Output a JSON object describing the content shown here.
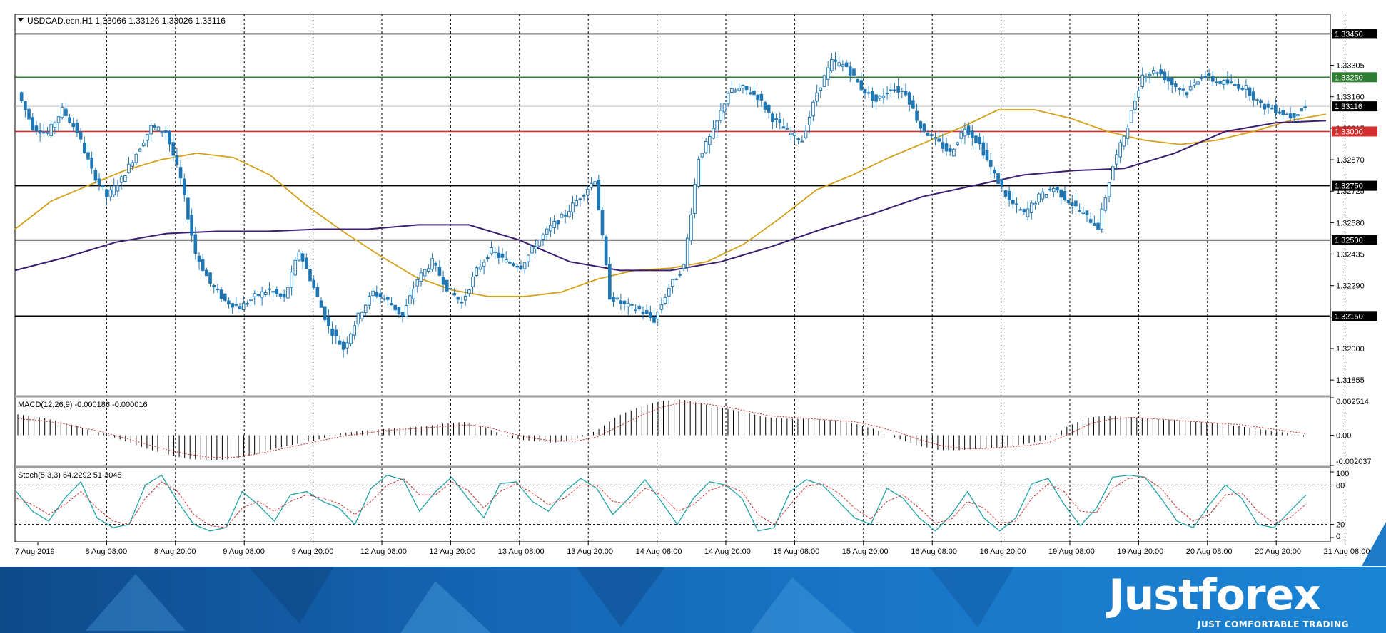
{
  "chart_data": {
    "type": "candlestick",
    "symbol_header": "USDCAD.ecn,H1  1.33066 1.33126 1.33026 1.33116",
    "price_axis": {
      "ylim": [
        1.3178,
        1.3354
      ],
      "tick_labels": [
        "1.33450",
        "1.33305",
        "1.33160",
        "1.33015",
        "1.32870",
        "1.32725",
        "1.32580",
        "1.32435",
        "1.32290",
        "1.32145",
        "1.32000",
        "1.31855"
      ]
    },
    "time_axis": {
      "tick_labels": [
        "7 Aug 2019",
        "8 Aug 08:00",
        "8 Aug 20:00",
        "9 Aug 08:00",
        "9 Aug 20:00",
        "12 Aug 08:00",
        "12 Aug 20:00",
        "13 Aug 08:00",
        "13 Aug 20:00",
        "14 Aug 08:00",
        "14 Aug 20:00",
        "15 Aug 08:00",
        "15 Aug 20:00",
        "16 Aug 08:00",
        "16 Aug 20:00",
        "19 Aug 08:00",
        "19 Aug 20:00",
        "20 Aug 08:00",
        "20 Aug 20:00",
        "21 Aug 08:00"
      ]
    },
    "horizontal_levels": [
      {
        "label": "1.33450",
        "value": 1.3345,
        "color": "#000000"
      },
      {
        "label": "1.33250",
        "value": 1.3325,
        "color": "#2e7d32"
      },
      {
        "label": "1.33116",
        "value": 1.33116,
        "color": "#000000"
      },
      {
        "label": "1.33000",
        "value": 1.33,
        "color": "#d32f2f"
      },
      {
        "label": "1.32750",
        "value": 1.3275,
        "color": "#000000"
      },
      {
        "label": "1.32500",
        "value": 1.325,
        "color": "#000000"
      },
      {
        "label": "1.32150",
        "value": 1.3215,
        "color": "#000000"
      }
    ],
    "price_path": [
      1.3318,
      1.3302,
      1.3299,
      1.331,
      1.33,
      1.3282,
      1.327,
      1.3278,
      1.329,
      1.3302,
      1.33,
      1.3278,
      1.3244,
      1.323,
      1.3222,
      1.3219,
      1.3224,
      1.3227,
      1.3223,
      1.3245,
      1.3228,
      1.321,
      1.32,
      1.3215,
      1.3226,
      1.3222,
      1.3215,
      1.3232,
      1.324,
      1.3228,
      1.3221,
      1.3236,
      1.3245,
      1.324,
      1.3238,
      1.3248,
      1.3256,
      1.3262,
      1.327,
      1.3278,
      1.3224,
      1.322,
      1.3218,
      1.3213,
      1.3228,
      1.3238,
      1.3288,
      1.33,
      1.3318,
      1.332,
      1.3316,
      1.3306,
      1.33,
      1.3296,
      1.3318,
      1.3332,
      1.333,
      1.332,
      1.3314,
      1.332,
      1.3318,
      1.3302,
      1.3296,
      1.329,
      1.3302,
      1.3294,
      1.328,
      1.3268,
      1.3262,
      1.327,
      1.3274,
      1.3268,
      1.3262,
      1.3256,
      1.3284,
      1.3303,
      1.3326,
      1.3328,
      1.3322,
      1.3318,
      1.3326,
      1.3323,
      1.3322,
      1.332,
      1.3312,
      1.331,
      1.3307,
      1.3311
    ],
    "ma_fast_name": "",
    "ma_fast": [
      1.3255,
      1.3268,
      1.3275,
      1.3282,
      1.3287,
      1.329,
      1.3288,
      1.328,
      1.3266,
      1.3254,
      1.3243,
      1.3233,
      1.3227,
      1.3224,
      1.3224,
      1.3226,
      1.3232,
      1.3236,
      1.3237,
      1.324,
      1.3248,
      1.326,
      1.3273,
      1.328,
      1.3288,
      1.3295,
      1.3302,
      1.331,
      1.331,
      1.3306,
      1.33,
      1.3296,
      1.3294,
      1.3296,
      1.33,
      1.3305,
      1.3308
    ],
    "ma_slow_name": "",
    "ma_slow": [
      1.3236,
      1.3242,
      1.3249,
      1.3253,
      1.3254,
      1.3254,
      1.3255,
      1.3255,
      1.3257,
      1.3257,
      1.325,
      1.324,
      1.3236,
      1.3236,
      1.324,
      1.3247,
      1.3255,
      1.3262,
      1.327,
      1.3275,
      1.328,
      1.3282,
      1.3283,
      1.329,
      1.33,
      1.3304,
      1.3305
    ],
    "macd": {
      "label": "MACD(12,26,9) -0.000186 -0.000016",
      "ylim": [
        -0.002037,
        0.002514
      ],
      "tick_labels": [
        "0.002514",
        "0.00",
        "-0.002037"
      ],
      "histogram": [
        0.0014,
        0.0012,
        0.0009,
        0.0005,
        0.0001,
        -0.0004,
        -0.0009,
        -0.0013,
        -0.0016,
        -0.0017,
        -0.0016,
        -0.0013,
        -0.0009,
        -0.0006,
        -0.0003,
        0.0001,
        0.0003,
        0.0004,
        0.0005,
        0.0006,
        0.0008,
        0.0009,
        0.0004,
        -0.0002,
        -0.0004,
        -0.0005,
        -0.0003,
        0.0003,
        0.0013,
        0.0019,
        0.0023,
        0.0024,
        0.0021,
        0.0018,
        0.0015,
        0.0012,
        0.0011,
        0.0011,
        0.001,
        0.0008,
        0.0004,
        -0.0002,
        -0.0007,
        -0.001,
        -0.001,
        -0.0009,
        -0.0008,
        -0.0006,
        -0.0003,
        0.0006,
        0.0012,
        0.0013,
        0.0012,
        0.0011,
        0.001,
        0.0009,
        0.0008,
        0.0006,
        0.0004,
        0.0002,
        -0.0001
      ],
      "signal": [
        0.0011,
        0.001,
        0.0008,
        0.0005,
        0.0002,
        -0.0002,
        -0.0006,
        -0.001,
        -0.0013,
        -0.0015,
        -0.0015,
        -0.0013,
        -0.001,
        -0.0007,
        -0.0004,
        -0.0001,
        0.0001,
        0.0003,
        0.0004,
        0.0005,
        0.0006,
        0.0007,
        0.0005,
        0.0001,
        -0.0002,
        -0.0004,
        -0.0004,
        -0.0001,
        0.0006,
        0.0013,
        0.0019,
        0.0022,
        0.0021,
        0.0019,
        0.0016,
        0.0013,
        0.0012,
        0.0011,
        0.001,
        0.0009,
        0.0006,
        0.0002,
        -0.0003,
        -0.0007,
        -0.0009,
        -0.0009,
        -0.0008,
        -0.0007,
        -0.0005,
        0.0001,
        0.0008,
        0.0011,
        0.0012,
        0.0011,
        0.001,
        0.0009,
        0.0008,
        0.0007,
        0.0005,
        0.0003,
        0.0001
      ]
    },
    "stoch": {
      "label": "Stoch(5,3,3) 64.2292 51.3045",
      "ylim": [
        0,
        100
      ],
      "tick_labels": [
        "100",
        "80",
        "20",
        "0"
      ],
      "main": [
        70,
        40,
        25,
        60,
        85,
        30,
        15,
        20,
        80,
        95,
        55,
        20,
        10,
        15,
        70,
        50,
        25,
        65,
        70,
        55,
        45,
        20,
        75,
        95,
        88,
        40,
        70,
        92,
        60,
        30,
        82,
        85,
        55,
        40,
        70,
        90,
        75,
        35,
        60,
        88,
        55,
        20,
        60,
        85,
        80,
        60,
        10,
        15,
        70,
        88,
        80,
        55,
        30,
        20,
        75,
        60,
        30,
        10,
        35,
        70,
        30,
        10,
        30,
        82,
        90,
        50,
        18,
        45,
        92,
        95,
        92,
        60,
        25,
        15,
        50,
        80,
        60,
        20,
        15,
        40,
        65
      ],
      "signal": [
        60,
        50,
        35,
        50,
        70,
        45,
        25,
        20,
        60,
        85,
        70,
        35,
        18,
        15,
        45,
        55,
        40,
        55,
        65,
        60,
        52,
        35,
        55,
        80,
        90,
        65,
        65,
        85,
        72,
        45,
        70,
        82,
        68,
        50,
        60,
        80,
        80,
        55,
        52,
        75,
        65,
        40,
        50,
        72,
        80,
        70,
        35,
        20,
        50,
        78,
        82,
        68,
        45,
        28,
        55,
        65,
        45,
        22,
        28,
        55,
        45,
        22,
        25,
        60,
        82,
        70,
        40,
        38,
        75,
        90,
        92,
        75,
        45,
        25,
        35,
        65,
        68,
        40,
        22,
        30,
        51
      ]
    }
  },
  "brand": {
    "name": "Justforex",
    "tagline": "JUST COMFORTABLE TRADING"
  }
}
